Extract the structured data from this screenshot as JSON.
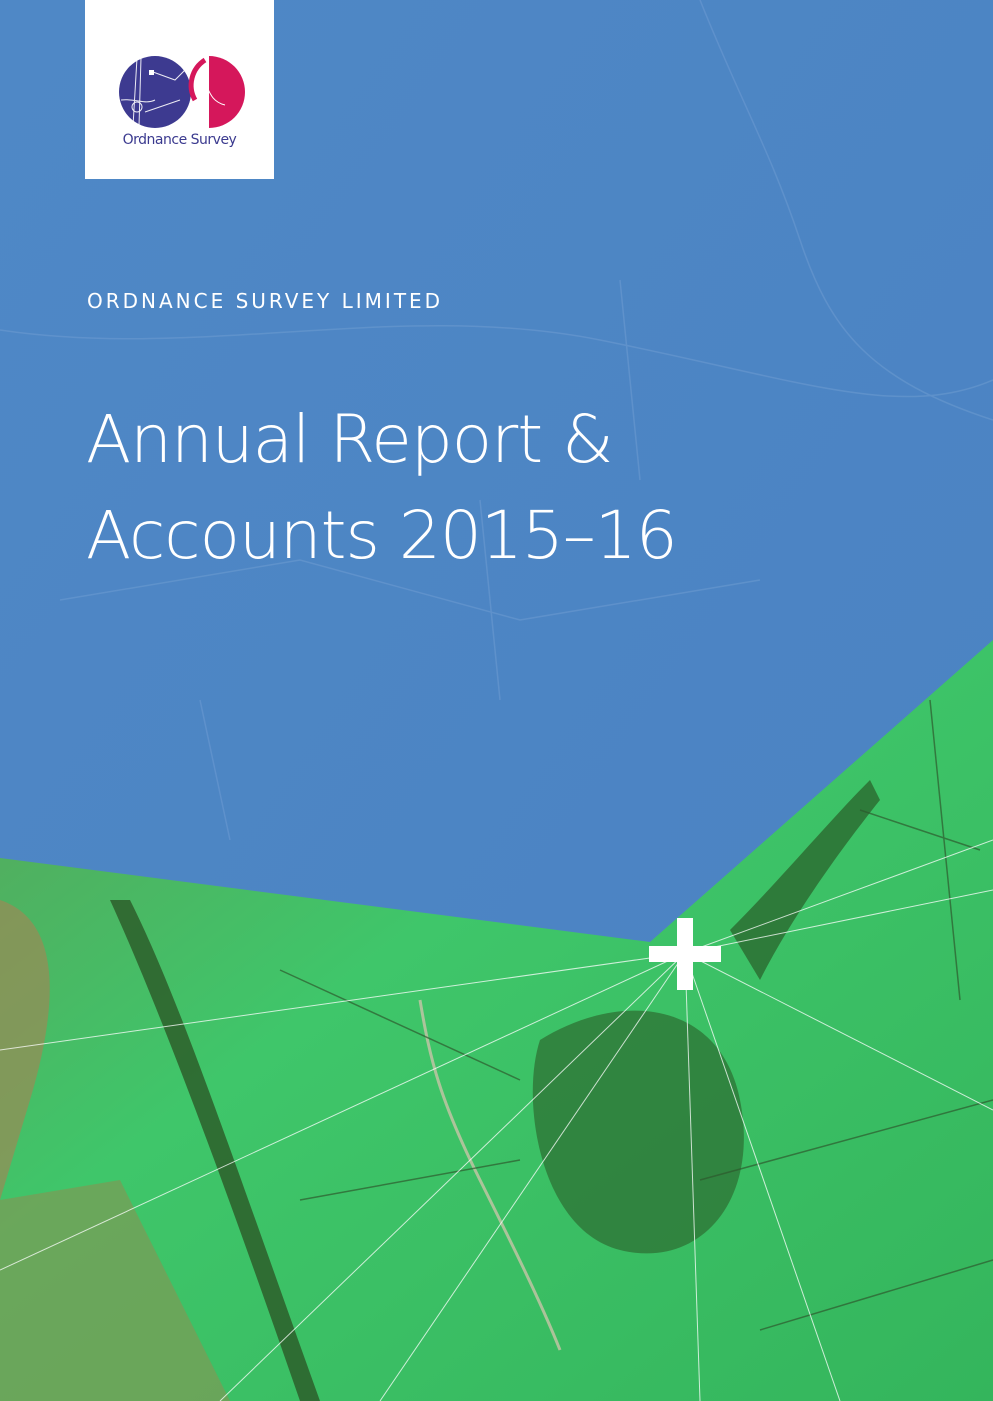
{
  "logo": {
    "text": "Ordnance Survey",
    "colors": {
      "blue": "#3d3a90",
      "magenta": "#d5175b"
    }
  },
  "cover": {
    "company": "ORDNANCE SURVEY LIMITED",
    "title_line1": "Annual Report &",
    "title_line2": "Accounts 2015–16"
  },
  "colors": {
    "sky": "#4a84c4",
    "field": "#3fbf63",
    "accent_mark": "#ffffff"
  },
  "icons": {
    "mark": "plus-icon"
  }
}
